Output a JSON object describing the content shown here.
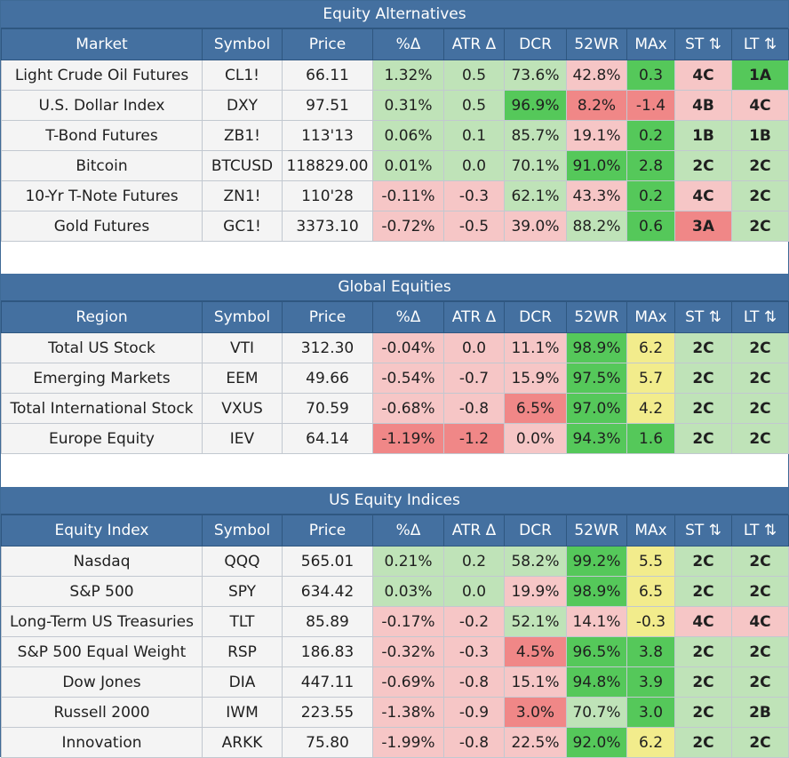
{
  "colors": {
    "header_bg": "#4470a0",
    "plain": "#f4f4f4",
    "light_green": "#bfe3b8",
    "green": "#55c85a",
    "light_red": "#f6c6c6",
    "red": "#f08787",
    "yellow": "#f2ec8c"
  },
  "sections": [
    {
      "title": "Equity Alternatives",
      "columns": [
        "Market",
        "Symbol",
        "Price",
        "%Δ",
        "ATR Δ",
        "DCR",
        "52WR",
        "MAx",
        "ST ⇅",
        "LT ⇅"
      ],
      "rows": [
        {
          "cells": [
            "Light Crude Oil Futures",
            "CL1!",
            "66.11",
            "1.32%",
            "0.5",
            "73.6%",
            "42.8%",
            "0.3",
            "4C",
            "1A"
          ],
          "colors": [
            "p",
            "p",
            "p",
            "lg",
            "lg",
            "lg",
            "lr",
            "g",
            "lr",
            "g"
          ]
        },
        {
          "cells": [
            "U.S. Dollar Index",
            "DXY",
            "97.51",
            "0.31%",
            "0.5",
            "96.9%",
            "8.2%",
            "-1.4",
            "4B",
            "4C"
          ],
          "colors": [
            "p",
            "p",
            "p",
            "lg",
            "lg",
            "g",
            "r",
            "r",
            "lr",
            "lr"
          ]
        },
        {
          "cells": [
            "T-Bond Futures",
            "ZB1!",
            "113'13",
            "0.06%",
            "0.1",
            "85.7%",
            "19.1%",
            "0.2",
            "1B",
            "1B"
          ],
          "colors": [
            "p",
            "p",
            "p",
            "lg",
            "lg",
            "lg",
            "lr",
            "g",
            "lg",
            "lg"
          ]
        },
        {
          "cells": [
            "Bitcoin",
            "BTCUSD",
            "118829.00",
            "0.01%",
            "0.0",
            "70.1%",
            "91.0%",
            "2.8",
            "2C",
            "2C"
          ],
          "colors": [
            "p",
            "p",
            "p",
            "lg",
            "lg",
            "lg",
            "g",
            "g",
            "lg",
            "lg"
          ]
        },
        {
          "cells": [
            "10-Yr T-Note Futures",
            "ZN1!",
            "110'28",
            "-0.11%",
            "-0.3",
            "62.1%",
            "43.3%",
            "0.2",
            "4C",
            "2C"
          ],
          "colors": [
            "p",
            "p",
            "p",
            "lr",
            "lr",
            "lg",
            "lr",
            "g",
            "lr",
            "lg"
          ]
        },
        {
          "cells": [
            "Gold Futures",
            "GC1!",
            "3373.10",
            "-0.72%",
            "-0.5",
            "39.0%",
            "88.2%",
            "0.6",
            "3A",
            "2C"
          ],
          "colors": [
            "p",
            "p",
            "p",
            "lr",
            "lr",
            "lr",
            "lg",
            "g",
            "r",
            "lg"
          ]
        }
      ]
    },
    {
      "title": "Global Equities",
      "columns": [
        "Region",
        "Symbol",
        "Price",
        "%Δ",
        "ATR Δ",
        "DCR",
        "52WR",
        "MAx",
        "ST ⇅",
        "LT ⇅"
      ],
      "rows": [
        {
          "cells": [
            "Total US Stock",
            "VTI",
            "312.30",
            "-0.04%",
            "0.0",
            "11.1%",
            "98.9%",
            "6.2",
            "2C",
            "2C"
          ],
          "colors": [
            "p",
            "p",
            "p",
            "lr",
            "lr",
            "lr",
            "g",
            "y",
            "lg",
            "lg"
          ]
        },
        {
          "cells": [
            "Emerging Markets",
            "EEM",
            "49.66",
            "-0.54%",
            "-0.7",
            "15.9%",
            "97.5%",
            "5.7",
            "2C",
            "2C"
          ],
          "colors": [
            "p",
            "p",
            "p",
            "lr",
            "lr",
            "lr",
            "g",
            "y",
            "lg",
            "lg"
          ]
        },
        {
          "cells": [
            "Total International Stock",
            "VXUS",
            "70.59",
            "-0.68%",
            "-0.8",
            "6.5%",
            "97.0%",
            "4.2",
            "2C",
            "2C"
          ],
          "colors": [
            "p",
            "p",
            "p",
            "lr",
            "lr",
            "r",
            "g",
            "y",
            "lg",
            "lg"
          ]
        },
        {
          "cells": [
            "Europe Equity",
            "IEV",
            "64.14",
            "-1.19%",
            "-1.2",
            "0.0%",
            "94.3%",
            "1.6",
            "2C",
            "2C"
          ],
          "colors": [
            "p",
            "p",
            "p",
            "r",
            "r",
            "lr",
            "g",
            "g",
            "lg",
            "lg"
          ]
        }
      ]
    },
    {
      "title": "US Equity Indices",
      "columns": [
        "Equity Index",
        "Symbol",
        "Price",
        "%Δ",
        "ATR Δ",
        "DCR",
        "52WR",
        "MAx",
        "ST ⇅",
        "LT ⇅"
      ],
      "rows": [
        {
          "cells": [
            "Nasdaq",
            "QQQ",
            "565.01",
            "0.21%",
            "0.2",
            "58.2%",
            "99.2%",
            "5.5",
            "2C",
            "2C"
          ],
          "colors": [
            "p",
            "p",
            "p",
            "lg",
            "lg",
            "lg",
            "g",
            "y",
            "lg",
            "lg"
          ]
        },
        {
          "cells": [
            "S&P 500",
            "SPY",
            "634.42",
            "0.03%",
            "0.0",
            "19.9%",
            "98.9%",
            "6.5",
            "2C",
            "2C"
          ],
          "colors": [
            "p",
            "p",
            "p",
            "lg",
            "lg",
            "lr",
            "g",
            "y",
            "lg",
            "lg"
          ]
        },
        {
          "cells": [
            "Long-Term US Treasuries",
            "TLT",
            "85.89",
            "-0.17%",
            "-0.2",
            "52.1%",
            "14.1%",
            "-0.3",
            "4C",
            "4C"
          ],
          "colors": [
            "p",
            "p",
            "p",
            "lr",
            "lr",
            "lg",
            "lr",
            "y",
            "lr",
            "lr"
          ]
        },
        {
          "cells": [
            "S&P 500 Equal Weight",
            "RSP",
            "186.83",
            "-0.32%",
            "-0.3",
            "4.5%",
            "96.5%",
            "3.8",
            "2C",
            "2C"
          ],
          "colors": [
            "p",
            "p",
            "p",
            "lr",
            "lr",
            "r",
            "g",
            "g",
            "lg",
            "lg"
          ]
        },
        {
          "cells": [
            "Dow Jones",
            "DIA",
            "447.11",
            "-0.69%",
            "-0.8",
            "15.1%",
            "94.8%",
            "3.9",
            "2C",
            "2C"
          ],
          "colors": [
            "p",
            "p",
            "p",
            "lr",
            "lr",
            "lr",
            "g",
            "g",
            "lg",
            "lg"
          ]
        },
        {
          "cells": [
            "Russell 2000",
            "IWM",
            "223.55",
            "-1.38%",
            "-0.9",
            "3.0%",
            "70.7%",
            "3.0",
            "2C",
            "2B"
          ],
          "colors": [
            "p",
            "p",
            "p",
            "lr",
            "lr",
            "r",
            "lg",
            "g",
            "lg",
            "lg"
          ]
        },
        {
          "cells": [
            "Innovation",
            "ARKK",
            "75.80",
            "-1.99%",
            "-0.8",
            "22.5%",
            "92.0%",
            "6.2",
            "2C",
            "2C"
          ],
          "colors": [
            "p",
            "p",
            "p",
            "lr",
            "lr",
            "lr",
            "g",
            "y",
            "lg",
            "lg"
          ]
        }
      ]
    }
  ]
}
